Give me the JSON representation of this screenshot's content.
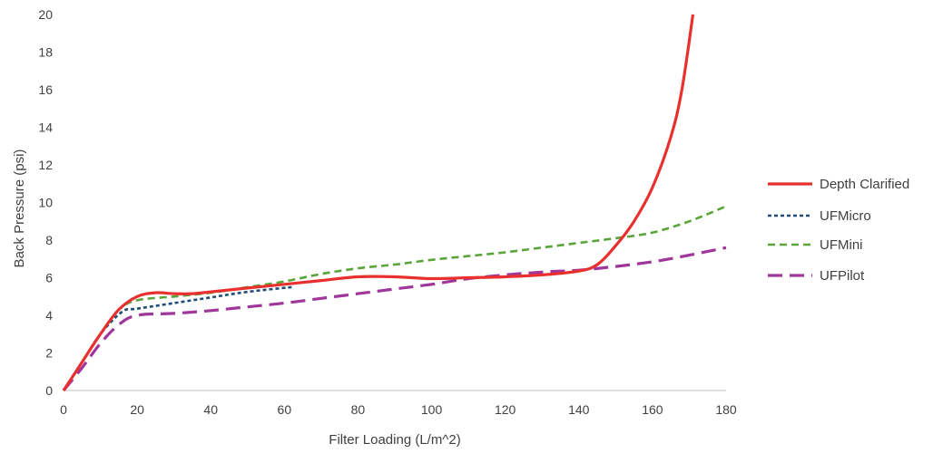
{
  "chart_data": {
    "type": "line",
    "title": "",
    "xlabel": "Filter Loading (L/m^2)",
    "ylabel": "Back Pressure (psi)",
    "xlim": [
      0,
      180
    ],
    "ylim": [
      0,
      20
    ],
    "x_ticks": [
      "0",
      "20",
      "40",
      "60",
      "80",
      "100",
      "120",
      "140",
      "160",
      "180"
    ],
    "y_ticks": [
      "0",
      "2",
      "4",
      "6",
      "8",
      "10",
      "12",
      "14",
      "16",
      "18",
      "20"
    ],
    "grid": false,
    "legend_position": "right",
    "series": [
      {
        "name": "Depth Clarified",
        "color": "#e8312f",
        "style": "solid",
        "points": [
          [
            0,
            0
          ],
          [
            5,
            1.5
          ],
          [
            10,
            3
          ],
          [
            15,
            4.3
          ],
          [
            20,
            5.0
          ],
          [
            25,
            5.2
          ],
          [
            30,
            5.15
          ],
          [
            35,
            5.15
          ],
          [
            40,
            5.25
          ],
          [
            50,
            5.45
          ],
          [
            60,
            5.65
          ],
          [
            70,
            5.85
          ],
          [
            80,
            6.05
          ],
          [
            90,
            6.05
          ],
          [
            100,
            5.95
          ],
          [
            110,
            6.0
          ],
          [
            120,
            6.05
          ],
          [
            130,
            6.15
          ],
          [
            140,
            6.35
          ],
          [
            145,
            6.7
          ],
          [
            150,
            7.7
          ],
          [
            155,
            9.0
          ],
          [
            160,
            10.8
          ],
          [
            165,
            13.5
          ],
          [
            168,
            16.0
          ],
          [
            171,
            20.0
          ]
        ]
      },
      {
        "name": "UFMicro",
        "color": "#1f4e79",
        "style": "dotted",
        "points": [
          [
            0,
            0
          ],
          [
            5,
            1.5
          ],
          [
            10,
            3
          ],
          [
            16,
            4.2
          ],
          [
            20,
            4.35
          ],
          [
            30,
            4.65
          ],
          [
            40,
            4.95
          ],
          [
            50,
            5.25
          ],
          [
            62,
            5.5
          ]
        ]
      },
      {
        "name": "UFMini",
        "color": "#5aa53a",
        "style": "dashed",
        "points": [
          [
            0,
            0
          ],
          [
            5,
            1.5
          ],
          [
            10,
            3
          ],
          [
            15,
            4.3
          ],
          [
            20,
            4.8
          ],
          [
            30,
            5.0
          ],
          [
            40,
            5.2
          ],
          [
            50,
            5.5
          ],
          [
            60,
            5.8
          ],
          [
            70,
            6.2
          ],
          [
            80,
            6.5
          ],
          [
            90,
            6.7
          ],
          [
            100,
            6.95
          ],
          [
            110,
            7.15
          ],
          [
            120,
            7.35
          ],
          [
            130,
            7.6
          ],
          [
            140,
            7.85
          ],
          [
            150,
            8.1
          ],
          [
            160,
            8.4
          ],
          [
            170,
            9.0
          ],
          [
            180,
            9.8
          ]
        ]
      },
      {
        "name": "UFPilot",
        "color": "#a0359a",
        "style": "longdash",
        "points": [
          [
            0,
            0
          ],
          [
            5,
            1.2
          ],
          [
            10,
            2.5
          ],
          [
            15,
            3.5
          ],
          [
            20,
            4.0
          ],
          [
            30,
            4.1
          ],
          [
            40,
            4.25
          ],
          [
            50,
            4.45
          ],
          [
            60,
            4.65
          ],
          [
            70,
            4.9
          ],
          [
            80,
            5.15
          ],
          [
            90,
            5.4
          ],
          [
            100,
            5.65
          ],
          [
            110,
            5.95
          ],
          [
            120,
            6.15
          ],
          [
            130,
            6.3
          ],
          [
            140,
            6.4
          ],
          [
            150,
            6.6
          ],
          [
            160,
            6.85
          ],
          [
            170,
            7.2
          ],
          [
            180,
            7.6
          ]
        ]
      }
    ]
  }
}
